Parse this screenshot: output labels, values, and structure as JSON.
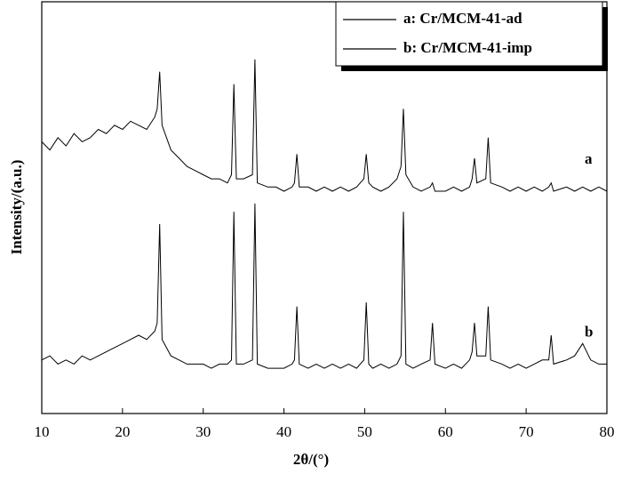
{
  "chart_data": {
    "type": "line",
    "x_label": "2θ/(°)",
    "y_label": "Intensity/(a.u.)",
    "x": [
      10,
      11,
      12,
      13,
      14,
      15,
      16,
      17,
      18,
      19,
      20,
      21,
      22,
      23,
      24,
      24.3,
      24.6,
      24.9,
      26,
      27,
      28,
      29,
      30,
      31,
      32,
      33,
      33.5,
      33.8,
      34.1,
      35,
      36.1,
      36.4,
      36.7,
      38,
      39,
      40,
      41,
      41.3,
      41.6,
      41.9,
      43,
      44,
      45,
      46,
      47,
      48,
      49,
      49.9,
      50.2,
      50.5,
      51,
      52,
      53,
      54,
      54.5,
      54.8,
      55.1,
      56,
      57,
      58.1,
      58.4,
      58.7,
      60,
      61,
      62,
      63,
      63.3,
      63.6,
      63.9,
      65,
      65.3,
      65.6,
      67,
      68,
      69,
      70,
      71,
      72,
      72.8,
      73.1,
      73.4,
      75,
      76,
      77,
      78,
      79,
      80
    ],
    "series": [
      {
        "name": "a: Cr/MCM-41-ad",
        "color": "#000000",
        "values": [
          66,
          64,
          67,
          65,
          68,
          66,
          67,
          69,
          68,
          70,
          69,
          71,
          70,
          69,
          72,
          74,
          83,
          70,
          64,
          62,
          60,
          59,
          58,
          57,
          57,
          56,
          58,
          80,
          57,
          57,
          58,
          86,
          56,
          55,
          55,
          54,
          55,
          56,
          63,
          55,
          55,
          54,
          55,
          54,
          55,
          54,
          55,
          57,
          63,
          56,
          55,
          54,
          55,
          57,
          60,
          74,
          58,
          55,
          54,
          55,
          56,
          54,
          54,
          55,
          54,
          55,
          57,
          62,
          56,
          57,
          67,
          56,
          55,
          54,
          55,
          54,
          55,
          54,
          55,
          56,
          54,
          55,
          54,
          55,
          54,
          55,
          54
        ]
      },
      {
        "name": "b: Cr/MCM-41-imp",
        "color": "#000000",
        "values": [
          13,
          14,
          12,
          13,
          12,
          14,
          13,
          14,
          15,
          16,
          17,
          18,
          19,
          18,
          20,
          22,
          46,
          18,
          14,
          13,
          12,
          12,
          12,
          11,
          12,
          12,
          13,
          49,
          12,
          12,
          13,
          51,
          12,
          11,
          11,
          11,
          12,
          13,
          26,
          12,
          11,
          12,
          11,
          12,
          11,
          12,
          11,
          13,
          27,
          12,
          11,
          12,
          11,
          12,
          14,
          49,
          12,
          11,
          12,
          13,
          22,
          12,
          11,
          12,
          11,
          13,
          15,
          22,
          14,
          14,
          26,
          13,
          12,
          11,
          12,
          11,
          12,
          13,
          13,
          19,
          12,
          13,
          14,
          17,
          13,
          12,
          12
        ]
      }
    ],
    "annotations": [
      "a",
      "b"
    ],
    "xlim": [
      10,
      80
    ],
    "xticks": [
      10,
      20,
      30,
      40,
      50,
      60,
      70,
      80
    ],
    "ylim": [
      0,
      100
    ],
    "legend": "upper right"
  }
}
